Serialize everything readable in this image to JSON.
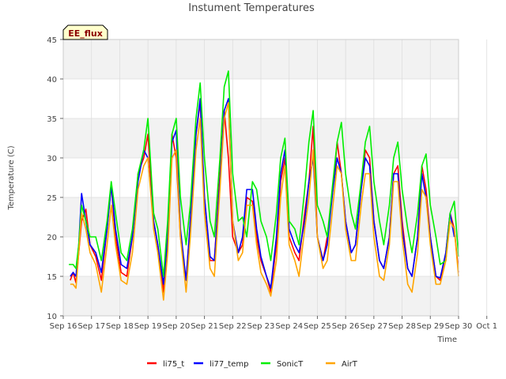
{
  "chart_data": {
    "type": "line",
    "title": "Instument Temperatures",
    "xlabel": "Time",
    "ylabel": "Temperature (C)",
    "badge": "EE_flux",
    "xlim": [
      0,
      14
    ],
    "ylim": [
      10,
      45
    ],
    "yticks": [
      10,
      15,
      20,
      25,
      30,
      35,
      40,
      45
    ],
    "xtick_labels": [
      "Sep 16",
      "Sep 17",
      "Sep 18",
      "Sep 19",
      "Sep 20",
      "Sep 21",
      "Sep 22",
      "Sep 23",
      "Sep 24",
      "Sep 25",
      "Sep 26",
      "Sep 27",
      "Sep 28",
      "Sep 29",
      "Sep 30",
      "Oct 1"
    ],
    "grid": true,
    "legend_position": "bottom",
    "colors": {
      "li75_t": "#ff0000",
      "li77_temp": "#0000ff",
      "SonicT": "#00ee00",
      "AirT": "#ffa500",
      "band": "#f2f2f2",
      "grid": "#dddddd",
      "badge_fill": "#ffffcc",
      "badge_text": "#8b0000"
    },
    "series": [
      {
        "name": "li75_t",
        "color": "#ff0000",
        "x": [
          0.25,
          0.35,
          0.45,
          0.55,
          0.65,
          0.8,
          0.95,
          1.15,
          1.35,
          1.55,
          1.7,
          1.85,
          2.05,
          2.25,
          2.45,
          2.65,
          2.85,
          3.0,
          3.2,
          3.35,
          3.55,
          3.7,
          3.85,
          4.0,
          4.15,
          4.35,
          4.5,
          4.7,
          4.85,
          5.0,
          5.2,
          5.35,
          5.55,
          5.7,
          5.85,
          6.0,
          6.2,
          6.35,
          6.5,
          6.7,
          6.85,
          7.0,
          7.2,
          7.35,
          7.55,
          7.7,
          7.85,
          8.0,
          8.2,
          8.35,
          8.55,
          8.7,
          8.85,
          9.0,
          9.2,
          9.35,
          9.55,
          9.7,
          9.85,
          10.0,
          10.2,
          10.35,
          10.55,
          10.7,
          10.85,
          11.0,
          11.2,
          11.35,
          11.55,
          11.7,
          11.85,
          12.0,
          12.2,
          12.35,
          12.55,
          12.7,
          12.85,
          13.0,
          13.2,
          13.35,
          13.55,
          13.7,
          13.85,
          14.0
        ],
        "y": [
          14.5,
          15.5,
          14.2,
          18,
          22,
          23.5,
          19,
          17.5,
          14.5,
          21,
          26.5,
          20,
          15.5,
          15,
          20,
          28,
          30,
          33,
          22,
          19,
          13,
          20,
          33,
          30,
          20,
          14.5,
          22,
          33,
          37,
          25,
          17,
          17,
          28,
          36,
          30,
          20,
          18,
          19,
          25,
          24.5,
          20,
          17,
          15,
          13,
          19,
          27,
          30,
          20,
          18,
          17,
          23,
          27,
          34,
          20,
          17,
          20,
          26,
          32,
          28,
          22,
          18,
          19,
          26,
          31,
          30,
          22,
          17,
          16,
          20,
          28,
          29,
          22,
          16,
          15,
          20,
          29,
          26,
          20,
          15,
          14.5,
          18,
          23,
          21,
          15.5
        ]
      },
      {
        "name": "li77_temp",
        "color": "#0000ff",
        "x": [
          0.25,
          0.35,
          0.45,
          0.55,
          0.65,
          0.8,
          0.95,
          1.15,
          1.35,
          1.55,
          1.7,
          1.85,
          2.05,
          2.25,
          2.45,
          2.65,
          2.85,
          3.0,
          3.2,
          3.35,
          3.55,
          3.7,
          3.85,
          4.0,
          4.15,
          4.35,
          4.5,
          4.7,
          4.85,
          5.0,
          5.2,
          5.35,
          5.55,
          5.7,
          5.85,
          6.0,
          6.2,
          6.35,
          6.5,
          6.7,
          6.85,
          7.0,
          7.2,
          7.35,
          7.55,
          7.7,
          7.85,
          8.0,
          8.2,
          8.35,
          8.55,
          8.7,
          8.85,
          9.0,
          9.2,
          9.35,
          9.55,
          9.7,
          9.85,
          10.0,
          10.2,
          10.35,
          10.55,
          10.7,
          10.85,
          11.0,
          11.2,
          11.35,
          11.55,
          11.7,
          11.85,
          12.0,
          12.2,
          12.35,
          12.55,
          12.7,
          12.85,
          13.0,
          13.2,
          13.35,
          13.55,
          13.7,
          13.85
        ],
        "y": [
          15,
          15.5,
          15,
          19,
          25.5,
          22,
          19,
          18,
          15.5,
          21,
          26.5,
          21,
          16.5,
          16,
          20,
          27,
          31,
          30,
          22,
          19,
          14,
          20,
          32,
          33.5,
          21,
          14.5,
          22,
          33,
          37.5,
          25,
          17.5,
          17,
          27,
          36,
          37.5,
          22,
          18,
          20,
          26,
          26,
          21,
          17.5,
          15,
          13.5,
          20,
          28,
          31,
          21,
          19,
          18,
          22,
          27,
          30,
          20,
          17,
          19,
          26,
          30,
          28,
          22,
          18,
          19,
          26,
          30,
          29,
          22,
          17,
          16,
          20,
          28,
          28,
          21,
          16,
          15,
          20,
          28,
          25,
          20,
          15,
          14.8,
          18,
          23,
          20
        ]
      },
      {
        "name": "SonicT",
        "color": "#00ee00",
        "x": [
          0.2,
          0.35,
          0.45,
          0.55,
          0.65,
          0.8,
          0.95,
          1.15,
          1.35,
          1.55,
          1.7,
          1.85,
          2.05,
          2.25,
          2.45,
          2.65,
          2.85,
          3.0,
          3.2,
          3.35,
          3.55,
          3.7,
          3.85,
          4.0,
          4.15,
          4.35,
          4.5,
          4.7,
          4.85,
          5.0,
          5.2,
          5.35,
          5.55,
          5.7,
          5.85,
          6.0,
          6.2,
          6.35,
          6.5,
          6.7,
          6.85,
          7.0,
          7.2,
          7.35,
          7.55,
          7.7,
          7.85,
          8.0,
          8.2,
          8.35,
          8.55,
          8.7,
          8.85,
          9.0,
          9.2,
          9.35,
          9.55,
          9.7,
          9.85,
          10.0,
          10.2,
          10.35,
          10.55,
          10.7,
          10.85,
          11.0,
          11.2,
          11.35,
          11.55,
          11.7,
          11.85,
          12.0,
          12.2,
          12.35,
          12.55,
          12.7,
          12.85,
          13.0,
          13.2,
          13.35,
          13.55,
          13.7,
          13.85,
          14.0
        ],
        "y": [
          16.5,
          16.5,
          16,
          19,
          24,
          22,
          20,
          20,
          17,
          22,
          27,
          23,
          18,
          17,
          21,
          28,
          31,
          35,
          23,
          21,
          15,
          22,
          33,
          35,
          25,
          19,
          24,
          35,
          39.5,
          30,
          22,
          20,
          30,
          39,
          41,
          28,
          22,
          22.5,
          20,
          27,
          26,
          22,
          20,
          17,
          23,
          30,
          32.5,
          22,
          21,
          19,
          26,
          32,
          36,
          24,
          22,
          20,
          27,
          32,
          34.5,
          28,
          23,
          21,
          27,
          32,
          34,
          27,
          22,
          19,
          24,
          30,
          32,
          26,
          21,
          18,
          23,
          29,
          30.5,
          24,
          20,
          16.5,
          17,
          23,
          24.5,
          17.5
        ]
      },
      {
        "name": "AirT",
        "color": "#ffa500",
        "x": [
          0.25,
          0.35,
          0.45,
          0.55,
          0.65,
          0.8,
          0.95,
          1.15,
          1.35,
          1.55,
          1.7,
          1.85,
          2.05,
          2.25,
          2.45,
          2.65,
          2.85,
          3.0,
          3.2,
          3.35,
          3.55,
          3.7,
          3.85,
          4.0,
          4.15,
          4.35,
          4.5,
          4.7,
          4.85,
          5.0,
          5.2,
          5.35,
          5.55,
          5.7,
          5.85,
          6.0,
          6.2,
          6.35,
          6.5,
          6.7,
          6.85,
          7.0,
          7.2,
          7.35,
          7.55,
          7.7,
          7.85,
          8.0,
          8.2,
          8.35,
          8.55,
          8.7,
          8.85,
          9.0,
          9.2,
          9.35,
          9.55,
          9.7,
          9.85,
          10.0,
          10.2,
          10.35,
          10.55,
          10.7,
          10.85,
          11.0,
          11.2,
          11.35,
          11.55,
          11.7,
          11.85,
          12.0,
          12.2,
          12.35,
          12.55,
          12.7,
          12.85,
          13.0,
          13.2,
          13.35,
          13.55,
          13.7,
          13.85,
          14.0
        ],
        "y": [
          14,
          14,
          13.5,
          18,
          23,
          21,
          18,
          16.5,
          13,
          19,
          24,
          19,
          14.5,
          14,
          18,
          26,
          29,
          30,
          21,
          18,
          12,
          18,
          30,
          31,
          20,
          13,
          20,
          31,
          35,
          23,
          16,
          15,
          26,
          35,
          37,
          22,
          17,
          18,
          24,
          24,
          19,
          15.5,
          14,
          12.5,
          17,
          25,
          29,
          19,
          17,
          15,
          21,
          25,
          31,
          20,
          16,
          17,
          24,
          29,
          28,
          21,
          17,
          17,
          24,
          28,
          28,
          20,
          15,
          14.5,
          19,
          27,
          27,
          20,
          14,
          13,
          18,
          26,
          25,
          19,
          14,
          14,
          17,
          22,
          21,
          15
        ]
      }
    ]
  }
}
